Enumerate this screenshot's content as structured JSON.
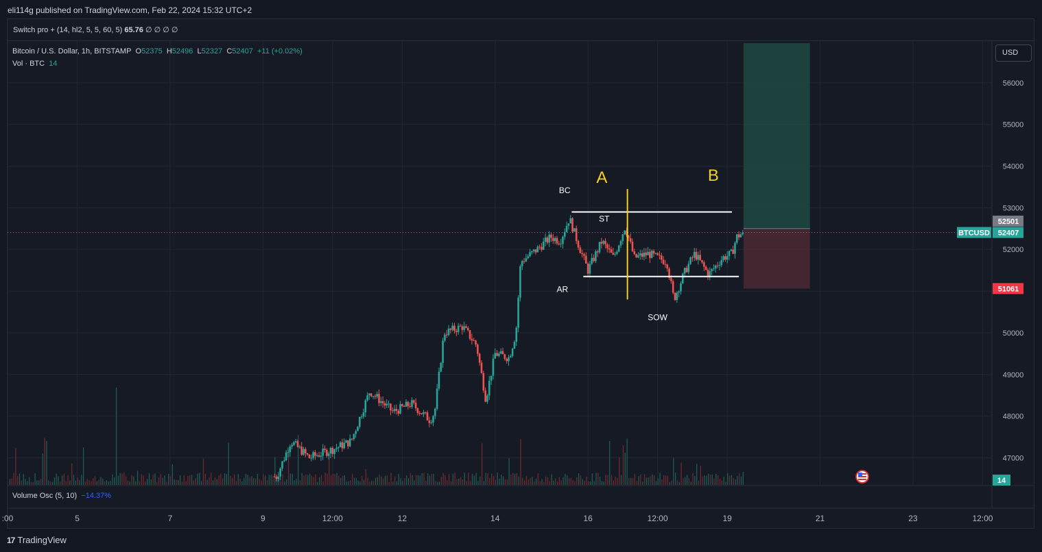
{
  "header": {
    "publish_line": "eli114g published on TradingView.com, Feb 22, 2024 15:32 UTC+2"
  },
  "indicator": {
    "label": "Switch pro + (14, hl2, 5, 5, 60, 5)",
    "value": "65.76",
    "extras": "∅ ∅ ∅ ∅"
  },
  "legend": {
    "symbol": "Bitcoin / U.S. Dollar, 1h, BITSTAMP",
    "o_label": "O",
    "o": "52375",
    "h_label": "H",
    "h": "52496",
    "l_label": "L",
    "l": "52327",
    "c_label": "C",
    "c": "52407",
    "change": "+11 (+0.02%)",
    "vol_label": "Vol · BTC",
    "vol": "14"
  },
  "currency_button": "USD",
  "volume_osc": {
    "label": "Volume Osc (5, 10)",
    "value": "−14.37%"
  },
  "footer": {
    "brand": "TradingView",
    "logo": "17"
  },
  "colors": {
    "up": "#26a69a",
    "down": "#ef5350",
    "annotation_yellow": "#f5d020",
    "target_zone": "#1e4a42",
    "stop_zone": "#4a2a33",
    "background": "#161a25"
  },
  "chart_data": {
    "type": "candlestick",
    "title": "",
    "symbol": "BTCUSD",
    "timeframe": "1h",
    "y_ticks": [
      47000,
      48000,
      49000,
      50000,
      51000,
      52000,
      53000,
      54000,
      55000,
      56000
    ],
    "ylim": [
      46350,
      57000
    ],
    "x_ticks": [
      ":00",
      "5",
      "7",
      "9",
      "12:00",
      "12",
      "14",
      "16",
      "12:00",
      "19",
      "21",
      "23",
      "12:00"
    ],
    "x_tick_days": [
      3.5,
      5,
      7,
      9,
      10.5,
      12,
      14,
      16,
      17.5,
      19,
      21,
      23,
      24.5
    ],
    "xlim_days": [
      3.5,
      24.7
    ],
    "last_day": 19.35,
    "price_path": [
      [
        3.6,
        46300
      ],
      [
        9.3,
        46550
      ],
      [
        9.6,
        47400
      ],
      [
        10.0,
        47000
      ],
      [
        10.5,
        47200
      ],
      [
        10.9,
        47400
      ],
      [
        11.3,
        48600
      ],
      [
        11.8,
        48100
      ],
      [
        12.2,
        48300
      ],
      [
        12.6,
        47900
      ],
      [
        12.7,
        48100
      ],
      [
        12.9,
        50000
      ],
      [
        13.3,
        50150
      ],
      [
        13.6,
        49700
      ],
      [
        13.8,
        48400
      ],
      [
        14.0,
        49500
      ],
      [
        14.3,
        49400
      ],
      [
        14.45,
        50000
      ],
      [
        14.55,
        51700
      ],
      [
        14.9,
        52000
      ],
      [
        15.2,
        52300
      ],
      [
        15.4,
        52200
      ],
      [
        15.6,
        52750
      ],
      [
        15.8,
        52100
      ],
      [
        16.0,
        51500
      ],
      [
        16.3,
        52200
      ],
      [
        16.55,
        51800
      ],
      [
        16.8,
        52550
      ],
      [
        17.0,
        51800
      ],
      [
        17.3,
        51900
      ],
      [
        17.7,
        51700
      ],
      [
        17.85,
        50800
      ],
      [
        18.1,
        51500
      ],
      [
        18.3,
        51900
      ],
      [
        18.6,
        51400
      ],
      [
        18.9,
        51800
      ],
      [
        19.1,
        51900
      ],
      [
        19.2,
        52300
      ],
      [
        19.35,
        52407
      ]
    ],
    "horizontal_lines": [
      {
        "price": 52900,
        "from_day": 15.65,
        "to_day": 19.1,
        "color": "#ffffff"
      },
      {
        "price": 51350,
        "from_day": 15.9,
        "to_day": 19.25,
        "color": "#ffffff"
      }
    ],
    "vertical_line": {
      "day": 16.85,
      "from_price": 53450,
      "to_price": 50800,
      "color": "#f5d020"
    },
    "annotations": [
      {
        "text": "BC",
        "day": 15.5,
        "price": 53350,
        "color": "#ffffff"
      },
      {
        "text": "ST",
        "day": 16.35,
        "price": 52670,
        "color": "#ffffff"
      },
      {
        "text": "AR",
        "day": 15.45,
        "price": 50980,
        "color": "#ffffff"
      },
      {
        "text": "SOW",
        "day": 17.5,
        "price": 50300,
        "color": "#ffffff"
      },
      {
        "text": "A",
        "day": 16.3,
        "price": 53600,
        "color": "#f5d020",
        "large": true
      },
      {
        "text": "B",
        "day": 18.7,
        "price": 53650,
        "color": "#f5d020",
        "large": true
      }
    ],
    "long_position": {
      "entry": 52501,
      "target": 56950,
      "stop": 51061,
      "from_day": 19.35,
      "to_day": 20.78
    },
    "price_labels": [
      {
        "text": "52501",
        "price": 52680,
        "color": "#787b86"
      },
      {
        "text": "52407",
        "price": 52407,
        "color": "#26a69a",
        "prefix": "BTCUSD"
      },
      {
        "text": "51061",
        "price": 51061,
        "color": "#f23645"
      }
    ],
    "volume_badge": "14"
  }
}
